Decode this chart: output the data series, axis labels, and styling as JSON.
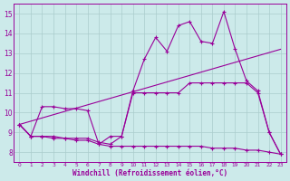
{
  "bg_color": "#cceaea",
  "line_color": "#990099",
  "grid_color": "#aacccc",
  "xlabel": "Windchill (Refroidissement éolien,°C)",
  "ylim": [
    7.5,
    15.5
  ],
  "xlim": [
    -0.5,
    23.5
  ],
  "yticks": [
    8,
    9,
    10,
    11,
    12,
    13,
    14,
    15
  ],
  "xticks": [
    0,
    1,
    2,
    3,
    4,
    5,
    6,
    7,
    8,
    9,
    10,
    11,
    12,
    13,
    14,
    15,
    16,
    17,
    18,
    19,
    20,
    21,
    22,
    23
  ],
  "line1_x": [
    0,
    1,
    2,
    3,
    4,
    5,
    6,
    7,
    8,
    9,
    10,
    11,
    12,
    13,
    14,
    15,
    16,
    17,
    18,
    19,
    20,
    21,
    22,
    23
  ],
  "line1_y": [
    9.4,
    8.8,
    10.3,
    10.3,
    10.2,
    10.2,
    10.1,
    8.4,
    8.8,
    8.8,
    11.1,
    12.7,
    13.8,
    13.1,
    14.4,
    14.6,
    13.6,
    13.5,
    15.1,
    13.2,
    11.6,
    11.1,
    9.0,
    7.9
  ],
  "line2_x": [
    0,
    1,
    2,
    3,
    4,
    5,
    6,
    7,
    8,
    9,
    10,
    11,
    12,
    13,
    14,
    15,
    16,
    17,
    18,
    19,
    20,
    21,
    22,
    23
  ],
  "line2_y": [
    9.4,
    8.8,
    8.8,
    8.8,
    8.7,
    8.7,
    8.7,
    8.5,
    8.4,
    8.8,
    11.0,
    11.0,
    11.0,
    11.0,
    11.0,
    11.5,
    11.5,
    11.5,
    11.5,
    11.5,
    11.5,
    11.0,
    9.0,
    7.9
  ],
  "line3_x": [
    0,
    23
  ],
  "line3_y": [
    9.4,
    13.2
  ],
  "line4_x": [
    0,
    1,
    2,
    3,
    4,
    5,
    6,
    7,
    8,
    9,
    10,
    11,
    12,
    13,
    14,
    15,
    16,
    17,
    18,
    19,
    20,
    21,
    22,
    23
  ],
  "line4_y": [
    9.4,
    8.8,
    8.8,
    8.7,
    8.7,
    8.6,
    8.6,
    8.4,
    8.3,
    8.3,
    8.3,
    8.3,
    8.3,
    8.3,
    8.3,
    8.3,
    8.3,
    8.2,
    8.2,
    8.2,
    8.1,
    8.1,
    8.0,
    7.9
  ]
}
